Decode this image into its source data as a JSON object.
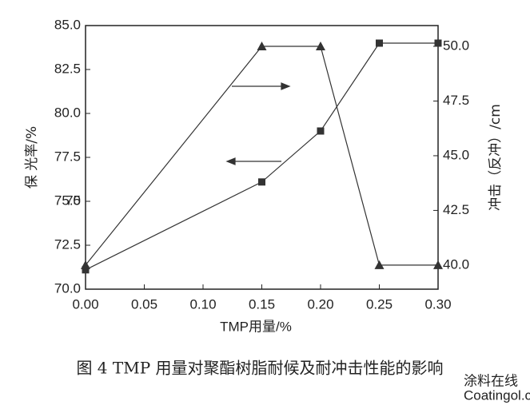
{
  "chart_data": {
    "type": "line",
    "caption": "图 4 TMP 用量对聚酯树脂耐候及耐冲击性能的影响",
    "x_label": "TMP用量/%",
    "y_label": "保 光率/%",
    "y2_label": "冲击（反冲）/cm",
    "watermark": "涂料在线",
    "watermark_url": "Coatingol.com",
    "x": [
      0.0,
      0.15,
      0.2,
      0.25,
      0.3
    ],
    "series": [
      {
        "color": "#333333",
        "marker": "square",
        "values": [
          71.1,
          76.1,
          79.0,
          84.0,
          84.0
        ]
      },
      {
        "color": "#333333",
        "marker": "triangle",
        "axis": "y2",
        "values": [
          40.0,
          50.0,
          50.0,
          40.0,
          40.0
        ]
      }
    ],
    "xlim": [
      0.0,
      0.3
    ],
    "xticks": [
      {
        "value": 0,
        "label": "0.00"
      },
      {
        "value": 0.05,
        "label": "0.05"
      },
      {
        "value": 0.1,
        "label": "0.10"
      },
      {
        "value": 0.15,
        "label": "0.15"
      },
      {
        "value": 0.2,
        "label": "0.20"
      },
      {
        "value": 0.25,
        "label": "0.25"
      },
      {
        "value": 0.3,
        "label": "0.30"
      }
    ],
    "ylim": [
      70.0,
      85.0
    ],
    "yticks": [
      {
        "value": 70,
        "label": "70.0"
      },
      72.5,
      75,
      {
        "value": 75,
        "label": "75.0"
      },
      77.5,
      {
        "value": 80,
        "label": "80.0"
      },
      82.5,
      {
        "value": 85,
        "label": "85.0"
      }
    ],
    "y2lim": [
      38.9,
      50.95
    ],
    "y2ticks": [
      {
        "value": 40,
        "label": "40.0"
      },
      42.5,
      {
        "value": 45,
        "label": "45.0"
      },
      47.5,
      {
        "value": 50,
        "label": "50.0"
      }
    ]
  }
}
